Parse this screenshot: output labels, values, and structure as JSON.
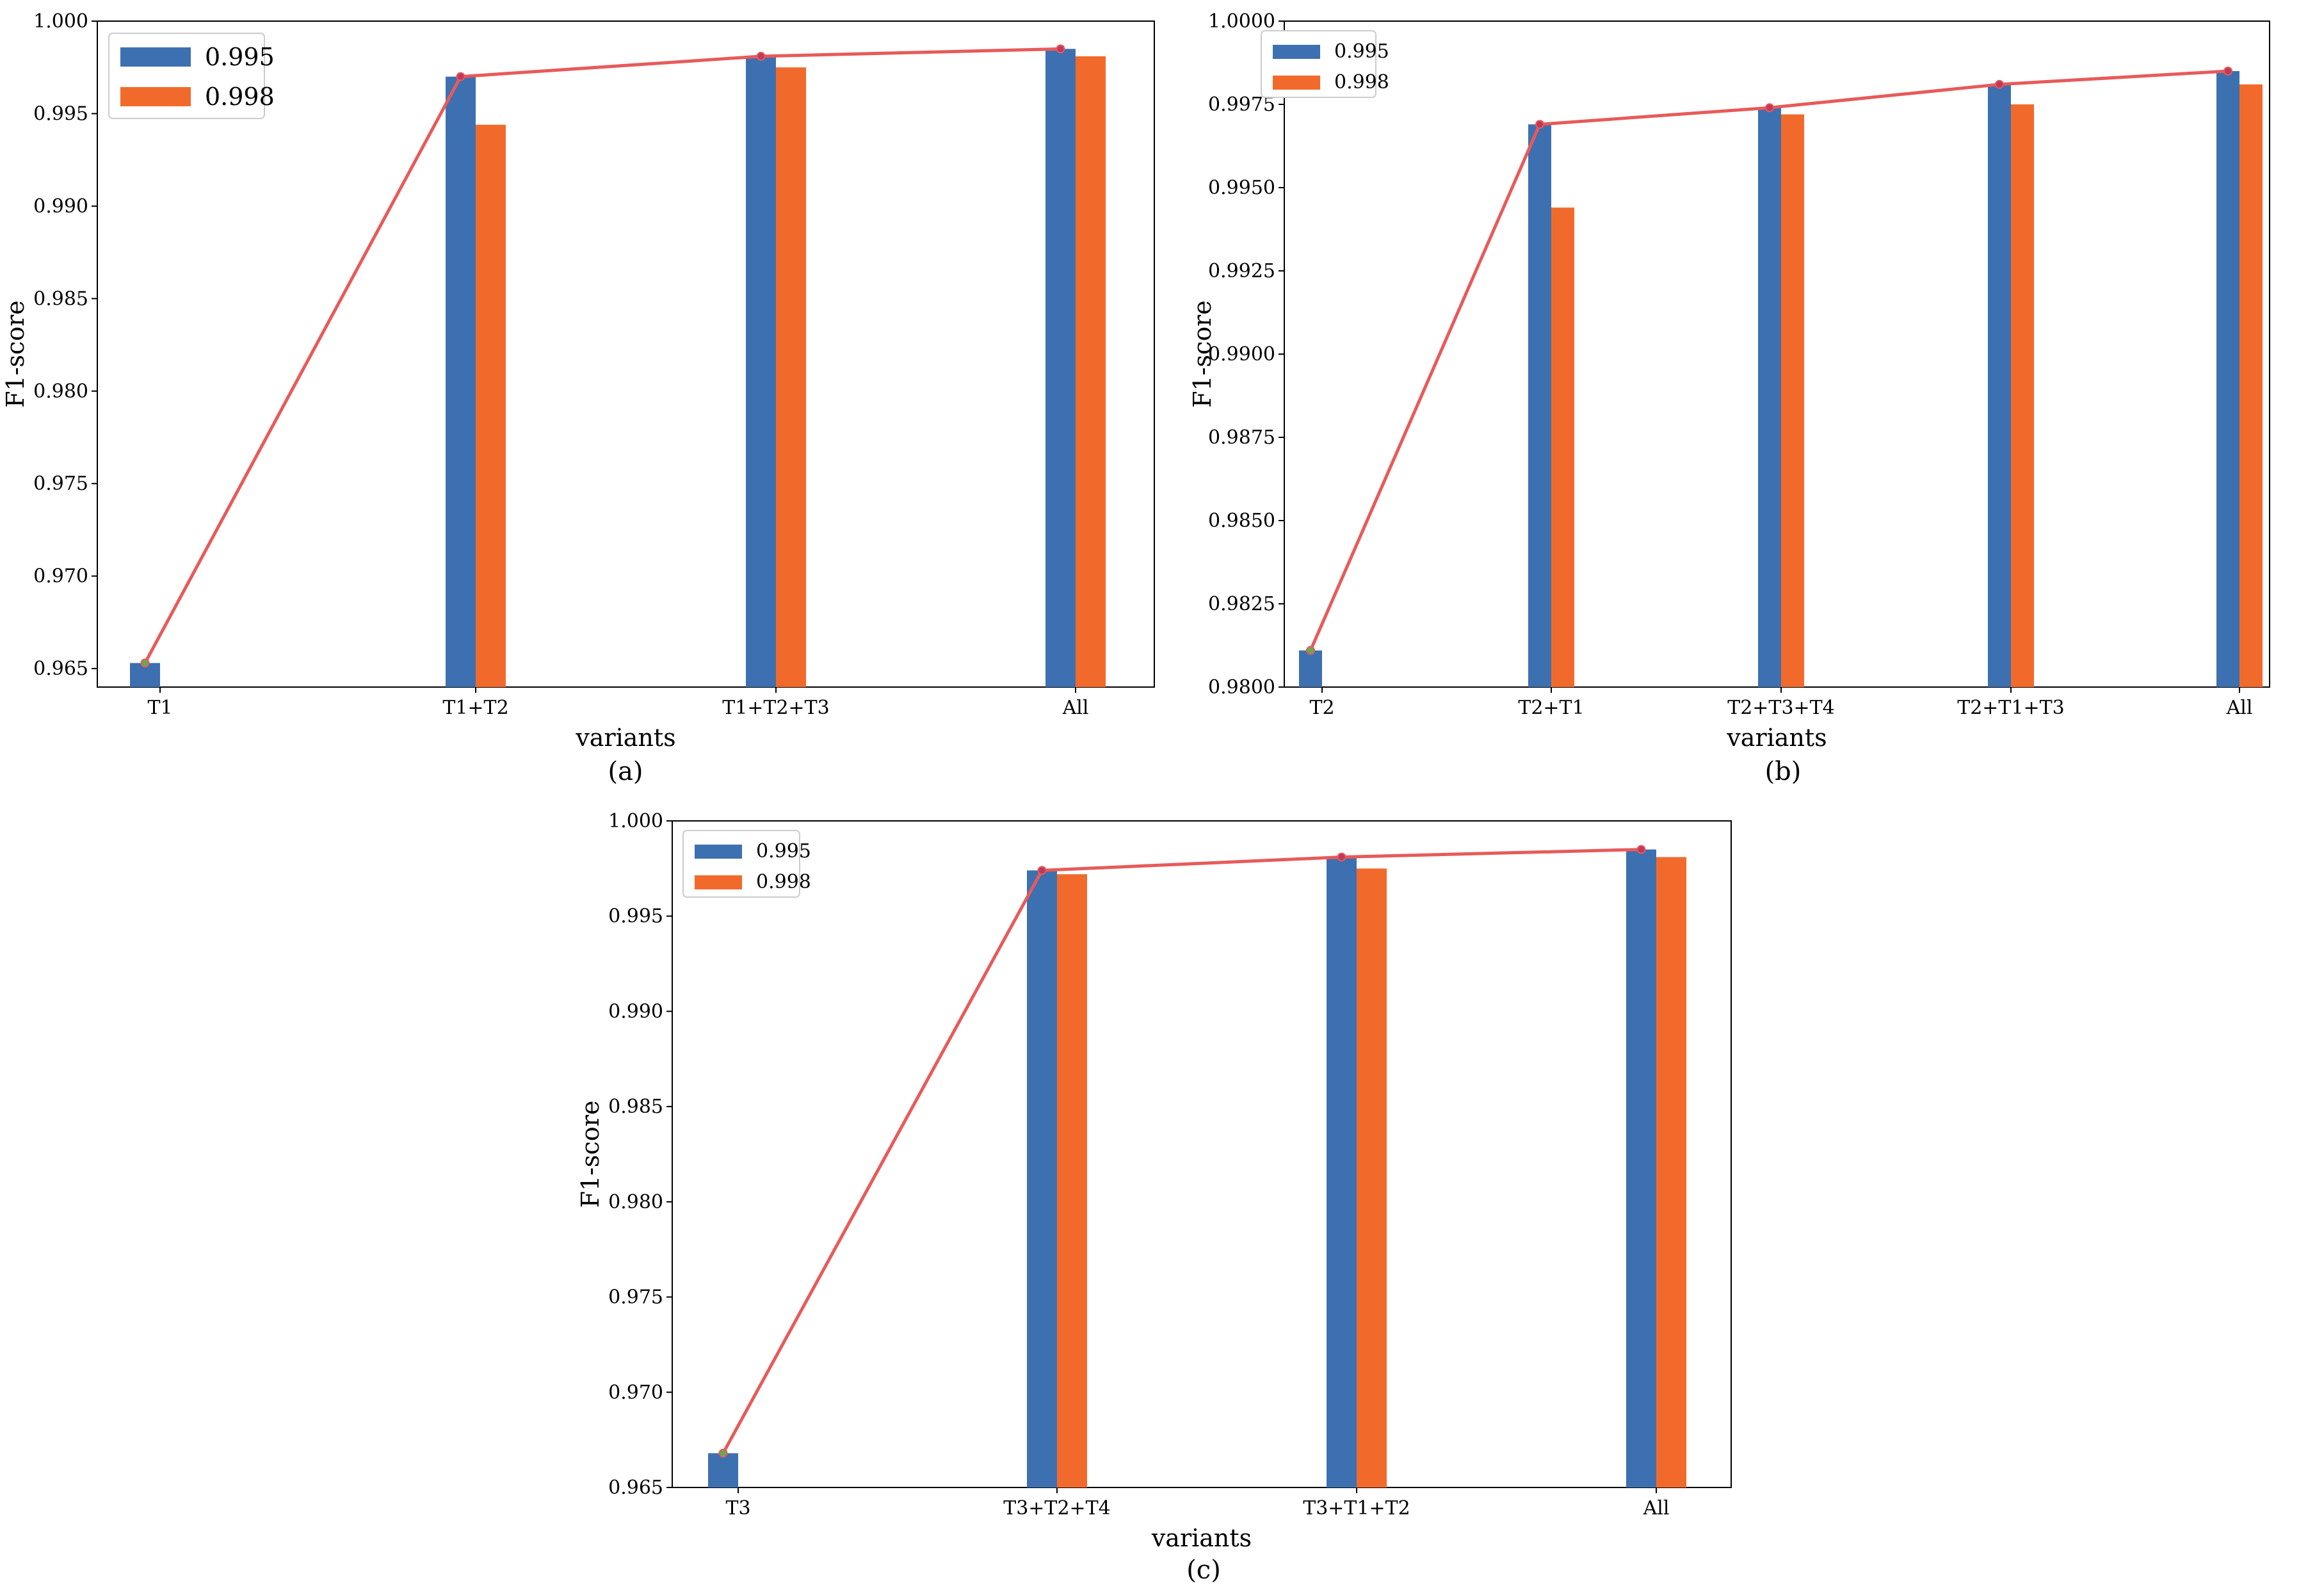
{
  "chart_data": [
    {
      "panel": "a",
      "type": "bar",
      "caption": "(a)",
      "xlabel": "variants",
      "ylabel": "F1-score",
      "categories": [
        "T1",
        "T1+T2",
        "T1+T2+T3",
        "All"
      ],
      "series": [
        {
          "name": "0.995",
          "color": "#3d70b0",
          "values": [
            0.9653,
            0.997,
            0.9981,
            0.9985
          ]
        },
        {
          "name": "0.998",
          "color": "#f26a2b",
          "values": [
            null,
            0.9944,
            0.9975,
            0.9981
          ]
        }
      ],
      "line": {
        "color": "#e85a5a",
        "values": [
          0.9653,
          0.997,
          0.9981,
          0.9985
        ]
      },
      "ylim": [
        0.964,
        1.0
      ],
      "yticks": [
        "0.965",
        "0.970",
        "0.975",
        "0.980",
        "0.985",
        "0.990",
        "0.995",
        "1.000"
      ],
      "legend_position": "top-left"
    },
    {
      "panel": "b",
      "type": "bar",
      "caption": "(b)",
      "xlabel": "variants",
      "ylabel": "F1-score",
      "categories": [
        "T2",
        "T2+T1",
        "T2+T3+T4",
        "T2+T1+T3",
        "All"
      ],
      "series": [
        {
          "name": "0.995",
          "color": "#3d70b0",
          "values": [
            0.9811,
            0.9969,
            0.9974,
            0.9981,
            0.9985
          ]
        },
        {
          "name": "0.998",
          "color": "#f26a2b",
          "values": [
            null,
            0.9944,
            0.9972,
            0.9975,
            0.9981
          ]
        }
      ],
      "line": {
        "color": "#e85a5a",
        "values": [
          0.9811,
          0.9969,
          0.9974,
          0.9981,
          0.9985
        ]
      },
      "ylim": [
        0.98,
        1.0
      ],
      "yticks": [
        "0.9800",
        "0.9825",
        "0.9850",
        "0.9875",
        "0.9900",
        "0.9925",
        "0.9950",
        "0.9975",
        "1.0000"
      ],
      "legend_position": "top-left"
    },
    {
      "panel": "c",
      "type": "bar",
      "caption": "(c)",
      "xlabel": "variants",
      "ylabel": "F1-score",
      "categories": [
        "T3",
        "T3+T2+T4",
        "T3+T1+T2",
        "All"
      ],
      "series": [
        {
          "name": "0.995",
          "color": "#3d70b0",
          "values": [
            0.9668,
            0.9974,
            0.9981,
            0.9985
          ]
        },
        {
          "name": "0.998",
          "color": "#f26a2b",
          "values": [
            null,
            0.9972,
            0.9975,
            0.9981
          ]
        }
      ],
      "line": {
        "color": "#e85a5a",
        "values": [
          0.9668,
          0.9974,
          0.9981,
          0.9985
        ]
      },
      "ylim": [
        0.965,
        1.0
      ],
      "yticks": [
        "0.965",
        "0.970",
        "0.975",
        "0.980",
        "0.985",
        "0.990",
        "0.995",
        "1.000"
      ],
      "legend_position": "top-left"
    }
  ]
}
